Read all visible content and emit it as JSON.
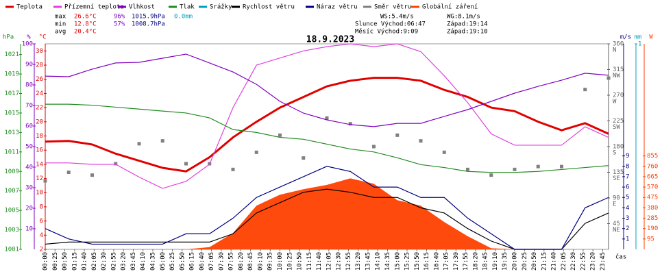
{
  "chart_data": {
    "type": "line",
    "title": "18.9.2023",
    "x": [
      0,
      60,
      120,
      180,
      240,
      300,
      360,
      420,
      480,
      540,
      600,
      660,
      720,
      780,
      840,
      900,
      960,
      1020,
      1080,
      1140,
      1200,
      1260,
      1320,
      1380,
      1440
    ],
    "xlim": [
      0,
      1440
    ],
    "x_label": "čas",
    "xticks": [
      {
        "value": 0,
        "label": "00:00"
      },
      {
        "value": 25,
        "label": "00:25"
      },
      {
        "value": 50,
        "label": "00:50"
      },
      {
        "value": 75,
        "label": "01:15"
      },
      {
        "value": 100,
        "label": "01:40"
      },
      {
        "value": 125,
        "label": "02:05"
      },
      {
        "value": 150,
        "label": "02:30"
      },
      {
        "value": 175,
        "label": "02:55"
      },
      {
        "value": 200,
        "label": "03:20"
      },
      {
        "value": 225,
        "label": "03:45"
      },
      {
        "value": 250,
        "label": "04:10"
      },
      {
        "value": 275,
        "label": "04:35"
      },
      {
        "value": 300,
        "label": "05:00"
      },
      {
        "value": 325,
        "label": "05:25"
      },
      {
        "value": 350,
        "label": "05:50"
      },
      {
        "value": 375,
        "label": "06:15"
      },
      {
        "value": 400,
        "label": "06:40"
      },
      {
        "value": 425,
        "label": "07:05"
      },
      {
        "value": 450,
        "label": "07:30"
      },
      {
        "value": 475,
        "label": "07:55"
      },
      {
        "value": 500,
        "label": "08:20"
      },
      {
        "value": 525,
        "label": "08:45"
      },
      {
        "value": 550,
        "label": "09:10"
      },
      {
        "value": 575,
        "label": "09:35"
      },
      {
        "value": 600,
        "label": "10:00"
      },
      {
        "value": 625,
        "label": "10:25"
      },
      {
        "value": 650,
        "label": "10:50"
      },
      {
        "value": 675,
        "label": "11:15"
      },
      {
        "value": 700,
        "label": "11:40"
      },
      {
        "value": 725,
        "label": "12:05"
      },
      {
        "value": 750,
        "label": "12:30"
      },
      {
        "value": 775,
        "label": "12:55"
      },
      {
        "value": 800,
        "label": "13:20"
      },
      {
        "value": 825,
        "label": "13:45"
      },
      {
        "value": 850,
        "label": "14:10"
      },
      {
        "value": 875,
        "label": "14:35"
      },
      {
        "value": 900,
        "label": "15:00"
      },
      {
        "value": 925,
        "label": "15:25"
      },
      {
        "value": 950,
        "label": "15:50"
      },
      {
        "value": 975,
        "label": "16:15"
      },
      {
        "value": 1000,
        "label": "16:40"
      },
      {
        "value": 1025,
        "label": "17:05"
      },
      {
        "value": 1050,
        "label": "17:30"
      },
      {
        "value": 1075,
        "label": "17:55"
      },
      {
        "value": 1100,
        "label": "18:20"
      },
      {
        "value": 1125,
        "label": "18:45"
      },
      {
        "value": 1150,
        "label": "19:10"
      },
      {
        "value": 1175,
        "label": "19:35"
      },
      {
        "value": 1200,
        "label": "20:00"
      },
      {
        "value": 1225,
        "label": "20:25"
      },
      {
        "value": 1250,
        "label": "20:50"
      },
      {
        "value": 1275,
        "label": "21:15"
      },
      {
        "value": 1300,
        "label": "21:40"
      },
      {
        "value": 1325,
        "label": "22:05"
      },
      {
        "value": 1350,
        "label": "22:30"
      },
      {
        "value": 1375,
        "label": "22:55"
      },
      {
        "value": 1400,
        "label": "23:20"
      },
      {
        "value": 1425,
        "label": "23:45"
      }
    ],
    "axes": {
      "hpa": {
        "label": "hPa",
        "color": "#228b22",
        "lim": [
          1001,
          1022.1
        ],
        "ticks": [
          1001,
          1003,
          1005,
          1007,
          1009,
          1011,
          1013,
          1015,
          1017,
          1019,
          1021
        ]
      },
      "pct": {
        "label": "%",
        "color": "#8000c0",
        "lim": [
          0,
          100
        ],
        "ticks": [
          10,
          20,
          30,
          40,
          50,
          60,
          70,
          80,
          90,
          100
        ]
      },
      "temp": {
        "label": "°C",
        "color": "#e00000",
        "lim": [
          2,
          31
        ],
        "ticks": [
          2,
          4,
          6,
          8,
          10,
          12,
          14,
          16,
          18,
          20,
          22,
          24,
          26,
          28,
          30
        ]
      },
      "dir": {
        "color": "#606060",
        "lim": [
          0,
          360
        ],
        "ticks": [
          {
            "value": 45,
            "label": "NE"
          },
          {
            "value": 90,
            "label": "E"
          },
          {
            "value": 135,
            "label": "SE"
          },
          {
            "value": 180,
            "label": "S"
          },
          {
            "value": 225,
            "label": "SW"
          },
          {
            "value": 270,
            "label": "W"
          },
          {
            "value": 315,
            "label": "NW"
          },
          {
            "value": 360,
            "label": "N"
          }
        ]
      },
      "ms": {
        "label": "m/s",
        "color": "#000080",
        "lim": [
          0,
          19.8
        ],
        "ticks": [
          1,
          2,
          3,
          4,
          5,
          6,
          7,
          8,
          9
        ]
      },
      "mm": {
        "label": "mm",
        "color": "#00a0c0",
        "lim": [
          0,
          1
        ],
        "ticks": [
          1
        ]
      },
      "w": {
        "label": "W",
        "color": "#ff4000",
        "lim": [
          0,
          1881
        ],
        "ticks": [
          95,
          190,
          285,
          380,
          475,
          570,
          665,
          760,
          855
        ]
      }
    },
    "series": [
      {
        "name": "Teplota",
        "color": "#e00000",
        "axis": "temp",
        "kind": "line",
        "values": [
          17.2,
          17.3,
          16.8,
          15.5,
          14.5,
          13.5,
          13.0,
          15.0,
          17.8,
          20.0,
          22.0,
          23.5,
          25.0,
          25.8,
          26.2,
          26.2,
          25.8,
          24.5,
          23.5,
          22.0,
          21.5,
          20.0,
          18.8,
          19.8,
          18.3
        ]
      },
      {
        "name": "Přízemní teplota",
        "color": "#e040e0",
        "axis": "temp",
        "kind": "line",
        "values": [
          14.2,
          14.2,
          14.0,
          14.0,
          12.2,
          10.6,
          11.6,
          14.0,
          22.0,
          28.0,
          29.0,
          30.0,
          30.6,
          31.0,
          30.6,
          31.0,
          29.9,
          26.5,
          22.7,
          18.3,
          16.7,
          16.7,
          16.7,
          19.3,
          17.8
        ]
      },
      {
        "name": "Vlhkost",
        "color": "#8000c0",
        "axis": "pct",
        "kind": "line",
        "values": [
          84.3,
          84.0,
          87.7,
          90.7,
          91.0,
          93.0,
          95.0,
          90.7,
          86.3,
          80.3,
          72.0,
          66.3,
          63.0,
          60.7,
          59.7,
          61.3,
          61.3,
          64.7,
          68.0,
          72.0,
          76.0,
          79.3,
          82.3,
          85.7,
          84.7
        ]
      },
      {
        "name": "Tlak",
        "color": "#228b22",
        "axis": "hpa",
        "kind": "line",
        "values": [
          1015.9,
          1015.9,
          1015.8,
          1015.6,
          1015.4,
          1015.2,
          1015.0,
          1014.5,
          1013.3,
          1013.0,
          1012.5,
          1012.3,
          1011.8,
          1011.3,
          1011.0,
          1010.4,
          1009.7,
          1009.4,
          1009.0,
          1008.9,
          1008.9,
          1009.0,
          1009.2,
          1009.4,
          1009.6
        ]
      },
      {
        "name": "Srážky",
        "color": "#00a0c0",
        "axis": "mm",
        "kind": "bar",
        "values": [
          0,
          0,
          0,
          0,
          0,
          0,
          0,
          0,
          0,
          0,
          0,
          0,
          0,
          0,
          0,
          0,
          0,
          0,
          0,
          0,
          0,
          0,
          0,
          0,
          0
        ]
      },
      {
        "name": "Rychlost větru",
        "color": "#000000",
        "axis": "ms",
        "kind": "line",
        "values": [
          0.5,
          0.7,
          0.7,
          0.7,
          0.7,
          0.7,
          0.7,
          0.7,
          1.5,
          3.5,
          4.5,
          5.5,
          5.8,
          5.5,
          5.0,
          5.0,
          4.0,
          3.5,
          2.0,
          0.8,
          0,
          0,
          0,
          2.5,
          3.5
        ]
      },
      {
        "name": "Náraz větru",
        "color": "#000080",
        "axis": "ms",
        "kind": "line",
        "values": [
          2,
          1,
          0.5,
          0.5,
          0.5,
          0.5,
          1.5,
          1.5,
          3,
          5,
          6,
          7,
          8,
          7.5,
          6,
          6,
          5,
          5,
          3,
          1.5,
          0,
          0,
          0,
          4,
          5
        ]
      },
      {
        "name": "Směr větru",
        "color": "#808080",
        "axis": "dir",
        "kind": "scatter",
        "values": [
          120,
          135,
          130,
          150,
          185,
          190,
          150,
          150,
          140,
          170,
          200,
          160,
          230,
          220,
          180,
          200,
          190,
          170,
          140,
          130,
          140,
          145,
          145,
          280,
          300
        ]
      },
      {
        "name": "Globální záření",
        "color": "#ff4000",
        "axis": "w",
        "kind": "area",
        "values": [
          0,
          0,
          0,
          0,
          0,
          0,
          0,
          20,
          150,
          400,
          500,
          550,
          590,
          650,
          600,
          450,
          400,
          250,
          120,
          10,
          0,
          0,
          0,
          0,
          0
        ]
      }
    ],
    "stats": [
      [
        "max",
        "26.6°C",
        "96%",
        "1015.9hPa",
        "0.0mm"
      ],
      [
        "min",
        "12.8°C",
        "57%",
        "1008.7hPa"
      ],
      [
        "avg",
        "20.4°C"
      ]
    ],
    "info": [
      [
        "WS:5.4m/s",
        "WG:8.1m/s"
      ],
      [
        "Slunce Východ:06:47",
        "Západ:19:14"
      ],
      [
        "Měsíc Východ:9:09",
        "Západ:19:10"
      ]
    ]
  }
}
